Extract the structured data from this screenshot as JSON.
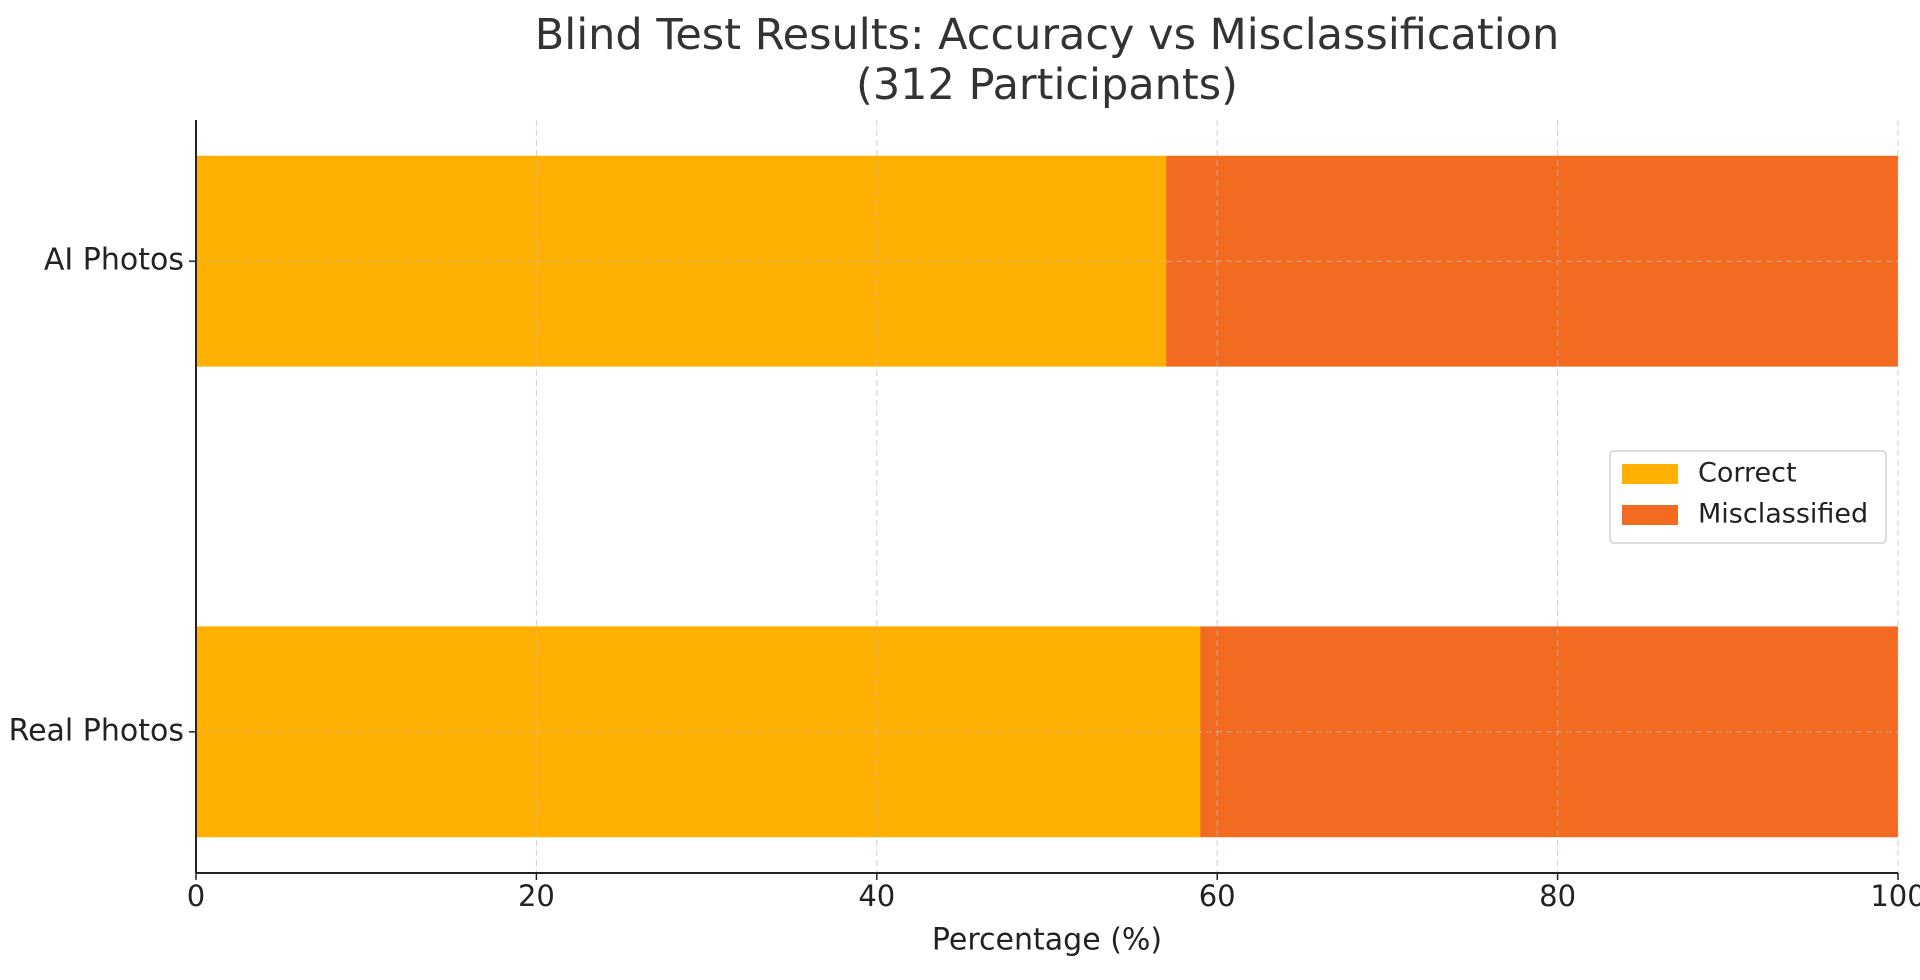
{
  "chart_data": {
    "type": "barh_stacked",
    "title": "Blind Test Results: Accuracy vs Misclassification\n(312 Participants)",
    "x_label": "Percentage (%)",
    "categories": [
      "AI Photos",
      "Real Photos"
    ],
    "series": [
      {
        "name": "Correct",
        "color": "#FFB000",
        "values": [
          57,
          59
        ]
      },
      {
        "name": "Misclassified",
        "color": "#F26B21",
        "values": [
          43,
          41
        ]
      }
    ],
    "xlim": [
      0,
      100
    ],
    "xticks": [
      0,
      20,
      40,
      60,
      80,
      100
    ],
    "grid": true,
    "legend": "right"
  }
}
